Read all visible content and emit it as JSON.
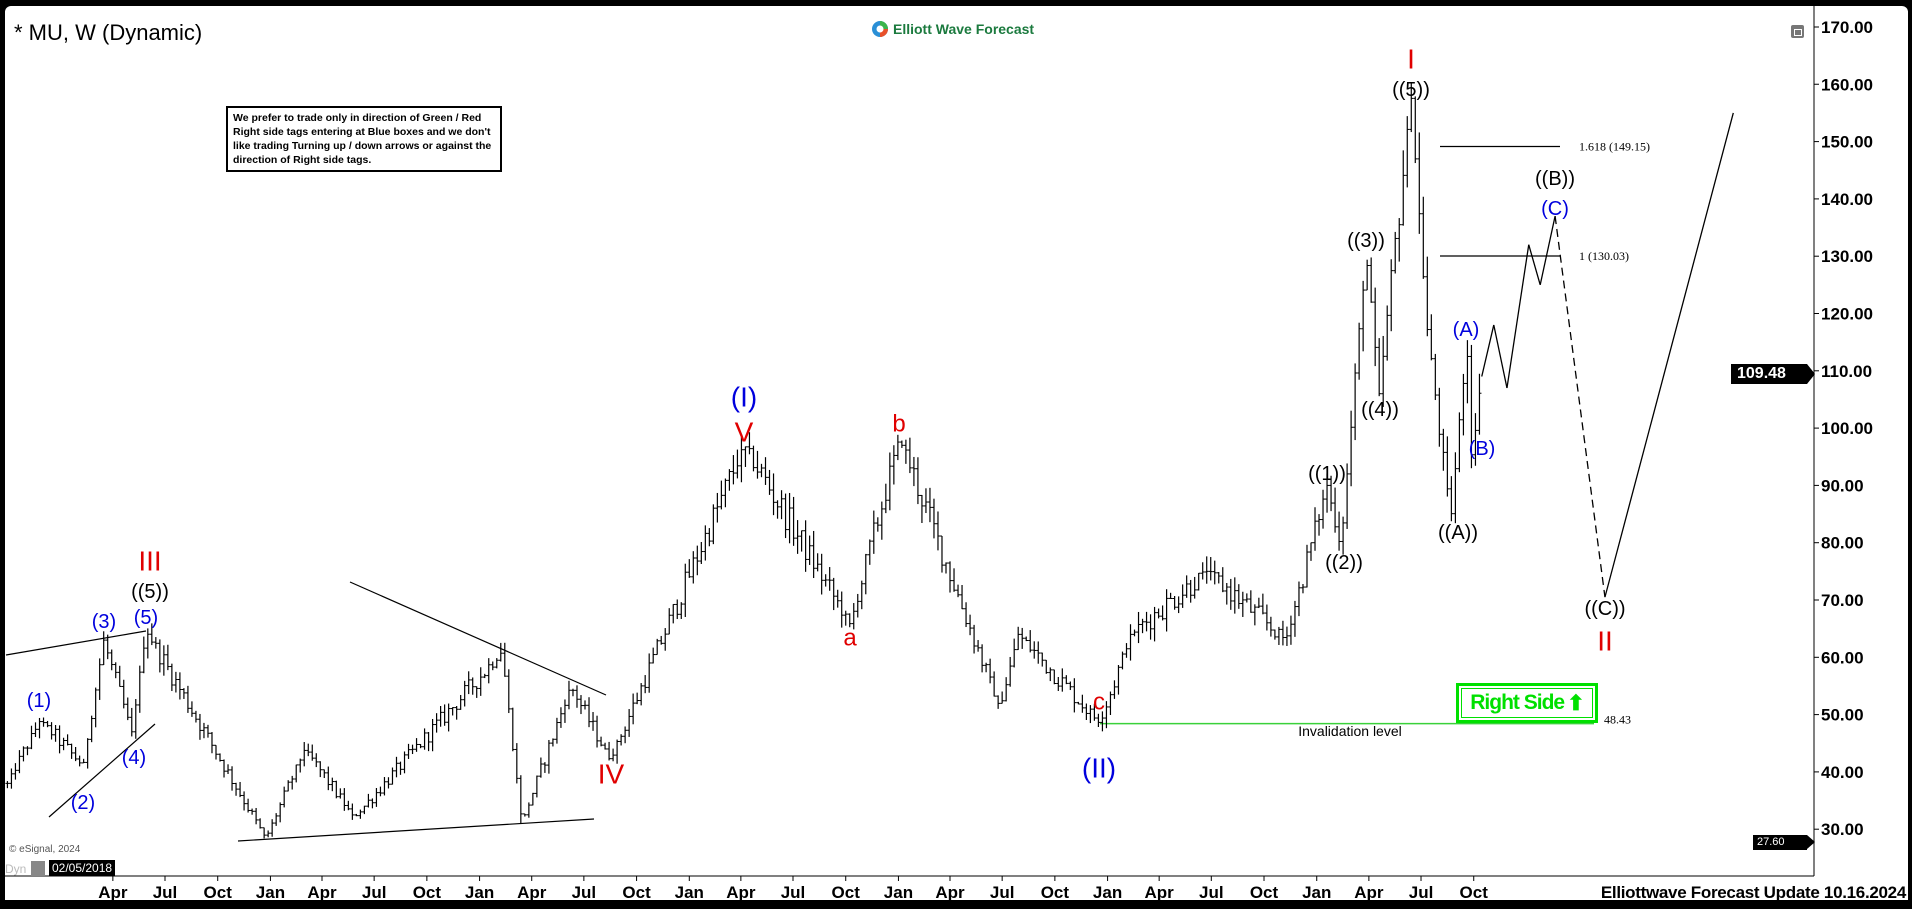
{
  "header": {
    "title": "* MU, W (Dynamic)",
    "logo_text": "Elliott Wave Forecast",
    "note": "We prefer to trade only in direction of Green / Red Right side tags entering at Blue boxes and we don't like trading Turning up / down arrows or against the direction of Right side tags."
  },
  "footer": {
    "update_text": "Elliottwave Forecast Update 10.16.2024",
    "dyn_label": "Dyn",
    "cursor_date": "02/05/2018",
    "copyright": "© eSignal, 2024"
  },
  "right_side": {
    "label": "Right Side",
    "icon": "arrow-up-icon",
    "color": "#00e000"
  },
  "chart_data": {
    "type": "ohlc",
    "symbol": "MU",
    "interval": "W",
    "ylim": [
      25,
      172
    ],
    "y_ticks": [
      "170.00",
      "160.00",
      "150.00",
      "140.00",
      "130.00",
      "120.00",
      "110.00",
      "100.00",
      "90.00",
      "80.00",
      "70.00",
      "60.00",
      "50.00",
      "40.00",
      "30.00"
    ],
    "y_tick_values": [
      170,
      160,
      150,
      140,
      130,
      120,
      110,
      100,
      90,
      80,
      70,
      60,
      50,
      40,
      30
    ],
    "x_ticks": [
      {
        "date": "2018-04-01",
        "label": "Apr"
      },
      {
        "date": "2018-07-01",
        "label": "Jul"
      },
      {
        "date": "2018-10-01",
        "label": "Oct"
      },
      {
        "date": "2019-01-01",
        "label": "Jan"
      },
      {
        "date": "2019-04-01",
        "label": "Apr"
      },
      {
        "date": "2019-07-01",
        "label": "Jul"
      },
      {
        "date": "2019-10-01",
        "label": "Oct"
      },
      {
        "date": "2020-01-01",
        "label": "Jan"
      },
      {
        "date": "2020-04-01",
        "label": "Apr"
      },
      {
        "date": "2020-07-01",
        "label": "Jul"
      },
      {
        "date": "2020-10-01",
        "label": "Oct"
      },
      {
        "date": "2021-01-01",
        "label": "Jan"
      },
      {
        "date": "2021-04-01",
        "label": "Apr"
      },
      {
        "date": "2021-07-01",
        "label": "Jul"
      },
      {
        "date": "2021-10-01",
        "label": "Oct"
      },
      {
        "date": "2022-01-01",
        "label": "Jan"
      },
      {
        "date": "2022-04-01",
        "label": "Apr"
      },
      {
        "date": "2022-07-01",
        "label": "Jul"
      },
      {
        "date": "2022-10-01",
        "label": "Oct"
      },
      {
        "date": "2023-01-01",
        "label": "Jan"
      },
      {
        "date": "2023-04-01",
        "label": "Apr"
      },
      {
        "date": "2023-07-01",
        "label": "Jul"
      },
      {
        "date": "2023-10-01",
        "label": "Oct"
      },
      {
        "date": "2024-01-01",
        "label": "Jan"
      },
      {
        "date": "2024-04-01",
        "label": "Apr"
      },
      {
        "date": "2024-07-01",
        "label": "Jul"
      },
      {
        "date": "2024-10-01",
        "label": "Oct"
      }
    ],
    "price_pivots": [
      {
        "date": "2017-09-29",
        "price": 38
      },
      {
        "date": "2017-11-25",
        "price": 49
      },
      {
        "date": "2018-02-08",
        "price": 41
      },
      {
        "date": "2018-03-16",
        "price": 63
      },
      {
        "date": "2018-05-04",
        "price": 47
      },
      {
        "date": "2018-05-29",
        "price": 64.66
      },
      {
        "date": "2018-12-24",
        "price": 28.39
      },
      {
        "date": "2019-03-02",
        "price": 44
      },
      {
        "date": "2019-05-27",
        "price": 32
      },
      {
        "date": "2020-02-09",
        "price": 61
      },
      {
        "date": "2020-03-15",
        "price": 31
      },
      {
        "date": "2020-06-08",
        "price": 55
      },
      {
        "date": "2020-08-16",
        "price": 42
      },
      {
        "date": "2021-04-07",
        "price": 96.96
      },
      {
        "date": "2021-10-09",
        "price": 65.67
      },
      {
        "date": "2022-01-03",
        "price": 98.45
      },
      {
        "date": "2022-06-27",
        "price": 51
      },
      {
        "date": "2022-07-29",
        "price": 64
      },
      {
        "date": "2022-12-19",
        "price": 48.43
      },
      {
        "date": "2023-02-10",
        "price": 64
      },
      {
        "date": "2023-06-23",
        "price": 75
      },
      {
        "date": "2023-11-08",
        "price": 63
      },
      {
        "date": "2024-01-19",
        "price": 90
      },
      {
        "date": "2024-02-12",
        "price": 79
      },
      {
        "date": "2024-03-27",
        "price": 130.5
      },
      {
        "date": "2024-04-19",
        "price": 106
      },
      {
        "date": "2024-06-14",
        "price": 157.54
      },
      {
        "date": "2024-07-11",
        "price": 118
      },
      {
        "date": "2024-08-22",
        "price": 84
      },
      {
        "date": "2024-09-19",
        "price": 115
      },
      {
        "date": "2024-09-28",
        "price": 93
      },
      {
        "date": "2024-10-14",
        "price": 109.48
      }
    ],
    "projection": [
      {
        "date": "2024-10-15",
        "price": 109,
        "style": "solid"
      },
      {
        "date": "2024-11-05",
        "price": 118,
        "style": "solid"
      },
      {
        "date": "2024-11-28",
        "price": 107,
        "style": "solid"
      },
      {
        "date": "2025-01-05",
        "price": 132,
        "style": "solid"
      },
      {
        "date": "2025-01-25",
        "price": 125,
        "style": "solid"
      },
      {
        "date": "2025-02-20",
        "price": 137,
        "style": "dashed"
      },
      {
        "date": "2025-05-18",
        "price": 70.5,
        "style": "solid"
      },
      {
        "date": "2025-12-28",
        "price": 155,
        "style": "solid"
      }
    ],
    "last_price": "109.48",
    "low_price_tag": "27.60",
    "invalidation": {
      "price": 48.43,
      "value_label": "48.43",
      "label": "Invalidation level",
      "color": "#3ad13a"
    },
    "fib_levels": [
      {
        "price": 149.15,
        "label": "1.618 (149.15)"
      },
      {
        "price": 130.03,
        "label": "1 (130.03)"
      }
    ],
    "wave_labels": [
      {
        "text": "(1)",
        "color": "#0000dd"
      },
      {
        "text": "(2)",
        "color": "#0000dd"
      },
      {
        "text": "(3)",
        "color": "#0000dd"
      },
      {
        "text": "(4)",
        "color": "#0000dd"
      },
      {
        "text": "(5)",
        "color": "#0000dd"
      },
      {
        "text": "((5))",
        "color": "#000000"
      },
      {
        "text": "III",
        "color": "#e00000"
      },
      {
        "text": "IV",
        "color": "#e00000"
      },
      {
        "text": "(I)",
        "color": "#0000dd"
      },
      {
        "text": "V",
        "color": "#e00000"
      },
      {
        "text": "a",
        "color": "#e00000"
      },
      {
        "text": "b",
        "color": "#e00000"
      },
      {
        "text": "c",
        "color": "#e00000"
      },
      {
        "text": "(II)",
        "color": "#0000dd"
      },
      {
        "text": "((1))",
        "color": "#000000"
      },
      {
        "text": "((2))",
        "color": "#000000"
      },
      {
        "text": "((3))",
        "color": "#000000"
      },
      {
        "text": "((4))",
        "color": "#000000"
      },
      {
        "text": "((5))",
        "color": "#000000"
      },
      {
        "text": "I",
        "color": "#e00000"
      },
      {
        "text": "((A))",
        "color": "#000000"
      },
      {
        "text": "(A)",
        "color": "#0000dd"
      },
      {
        "text": "(B)",
        "color": "#0000dd"
      },
      {
        "text": "((B))",
        "color": "#000000"
      },
      {
        "text": "(C)",
        "color": "#0000dd"
      },
      {
        "text": "((C))",
        "color": "#000000"
      },
      {
        "text": "II",
        "color": "#e00000"
      }
    ]
  }
}
